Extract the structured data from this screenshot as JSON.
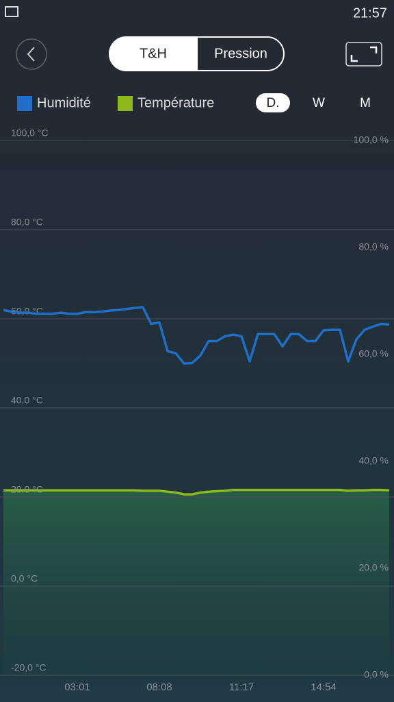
{
  "ui": {
    "status_time": "21:57",
    "tabs": [
      "T&H",
      "Pression"
    ],
    "periods": [
      "D.",
      "W",
      "M"
    ]
  },
  "chart_data": {
    "type": "line",
    "categories": [
      null,
      null,
      null,
      null,
      null,
      null,
      null,
      null,
      null,
      "03:01",
      null,
      null,
      null,
      null,
      null,
      null,
      null,
      null,
      null,
      "08:08",
      null,
      null,
      null,
      null,
      null,
      null,
      null,
      null,
      null,
      "11:17",
      null,
      null,
      null,
      null,
      null,
      null,
      null,
      null,
      null,
      "14:54",
      null,
      null,
      null,
      null,
      null,
      null,
      null,
      null
    ],
    "series": [
      {
        "name": "Humidité",
        "color": "#1f6fc8",
        "axis": "y2",
        "values": [
          68.3,
          68.0,
          67.8,
          67.8,
          67.6,
          67.6,
          67.6,
          67.8,
          67.6,
          67.6,
          67.9,
          67.9,
          68.0,
          68.2,
          68.3,
          68.5,
          68.7,
          68.8,
          65.7,
          66.0,
          60.6,
          60.2,
          58.3,
          58.4,
          59.8,
          62.5,
          62.5,
          63.4,
          63.7,
          63.4,
          58.7,
          63.8,
          63.8,
          63.8,
          61.5,
          63.8,
          63.8,
          62.5,
          62.5,
          64.5,
          64.6,
          64.6,
          58.7,
          62.8,
          64.6,
          65.2,
          65.7,
          65.6
        ]
      },
      {
        "name": "Température",
        "color": "#8fb81a",
        "values": [
          21.5,
          21.5,
          21.5,
          21.5,
          21.5,
          21.5,
          21.5,
          21.5,
          21.5,
          21.5,
          21.5,
          21.5,
          21.5,
          21.5,
          21.5,
          21.5,
          21.5,
          21.4,
          21.4,
          21.4,
          21.2,
          21.0,
          20.6,
          20.6,
          21.0,
          21.2,
          21.3,
          21.4,
          21.6,
          21.6,
          21.6,
          21.6,
          21.6,
          21.6,
          21.6,
          21.6,
          21.6,
          21.6,
          21.6,
          21.6,
          21.6,
          21.6,
          21.4,
          21.5,
          21.5,
          21.6,
          21.6,
          21.5
        ]
      }
    ],
    "ylim": [
      -20,
      100
    ],
    "yticks": [
      {
        "value": -20,
        "label": "-20,0 °C"
      },
      {
        "value": 0,
        "label": "0,0 °C"
      },
      {
        "value": 20,
        "label": "20,0 °C"
      },
      {
        "value": 40,
        "label": "40,0 °C"
      },
      {
        "value": 60,
        "label": "60,0 °C"
      },
      {
        "value": 80,
        "label": "80,0 °C"
      },
      {
        "value": 100,
        "label": "100,0 °C"
      }
    ],
    "y2lim": [
      0,
      100
    ],
    "y2ticks": [
      {
        "value": 0,
        "label": "0,0 %"
      },
      {
        "value": 20,
        "label": "20,0 %"
      },
      {
        "value": 40,
        "label": "40,0 %"
      },
      {
        "value": 60,
        "label": "60,0 %"
      },
      {
        "value": 80,
        "label": "80,0 %"
      },
      {
        "value": 100,
        "label": "100,0 %"
      }
    ],
    "grid": true
  }
}
